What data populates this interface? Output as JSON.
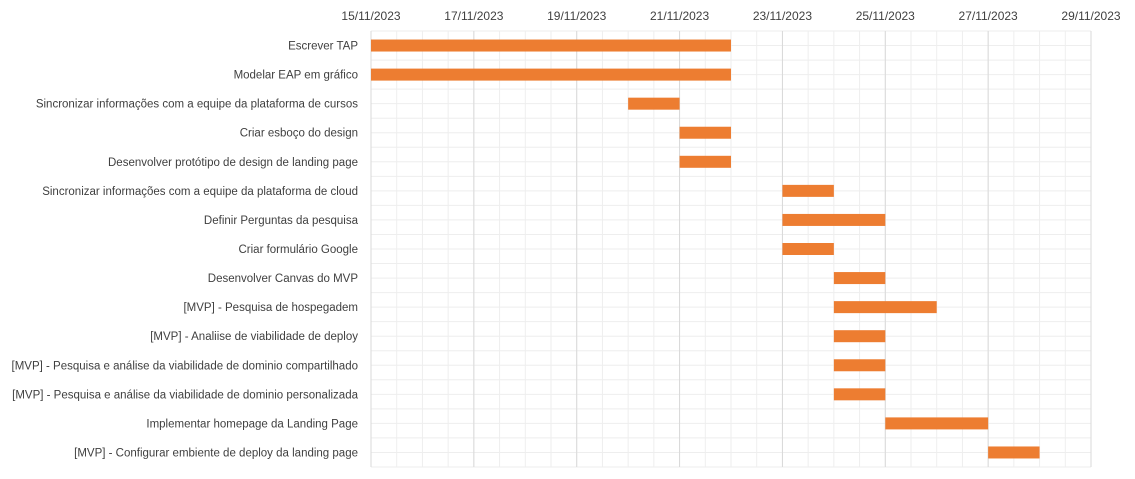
{
  "chart_data": {
    "type": "bar",
    "subtype": "gantt",
    "title": "",
    "xlabel": "",
    "ylabel": "",
    "x_axis_position": "top",
    "xlim": [
      "15/11/2023",
      "29/11/2023"
    ],
    "x_tick_labels": [
      "15/11/2023",
      "17/11/2023",
      "19/11/2023",
      "21/11/2023",
      "23/11/2023",
      "25/11/2023",
      "27/11/2023",
      "29/11/2023"
    ],
    "grid": true,
    "legend": "none",
    "bar_color": "#ED7D31",
    "gridline_color": "#d9d9d9",
    "minor_gridline_color": "#eeeeee",
    "tasks": [
      {
        "name": "Escrever TAP",
        "start": "15/11/2023",
        "end": "22/11/2023"
      },
      {
        "name": "Modelar EAP em gráfico",
        "start": "15/11/2023",
        "end": "22/11/2023"
      },
      {
        "name": "Sincronizar informações com a equipe da plataforma de cursos",
        "start": "20/11/2023",
        "end": "21/11/2023"
      },
      {
        "name": "Criar esboço do design",
        "start": "21/11/2023",
        "end": "22/11/2023"
      },
      {
        "name": "Desenvolver protótipo de design de landing page",
        "start": "21/11/2023",
        "end": "22/11/2023"
      },
      {
        "name": "Sincronizar informações com a equipe da plataforma de cloud",
        "start": "23/11/2023",
        "end": "24/11/2023"
      },
      {
        "name": "Definir Perguntas da pesquisa",
        "start": "23/11/2023",
        "end": "25/11/2023"
      },
      {
        "name": "Criar formulário Google",
        "start": "23/11/2023",
        "end": "24/11/2023"
      },
      {
        "name": "Desenvolver Canvas do MVP",
        "start": "24/11/2023",
        "end": "25/11/2023"
      },
      {
        "name": "[MVP] - Pesquisa de hospegadem",
        "start": "24/11/2023",
        "end": "26/11/2023"
      },
      {
        "name": "[MVP] - Analiise de viabilidade de deploy",
        "start": "24/11/2023",
        "end": "25/11/2023"
      },
      {
        "name": "[MVP] - Pesquisa e análise da viabilidade de dominio compartilhado",
        "start": "24/11/2023",
        "end": "25/11/2023"
      },
      {
        "name": "[MVP] - Pesquisa e análise da viabilidade de dominio personalizada",
        "start": "24/11/2023",
        "end": "25/11/2023"
      },
      {
        "name": "Implementar homepage da Landing Page",
        "start": "25/11/2023",
        "end": "27/11/2023"
      },
      {
        "name": "[MVP] - Configurar embiente de deploy da landing page",
        "start": "27/11/2023",
        "end": "28/11/2023"
      }
    ]
  }
}
